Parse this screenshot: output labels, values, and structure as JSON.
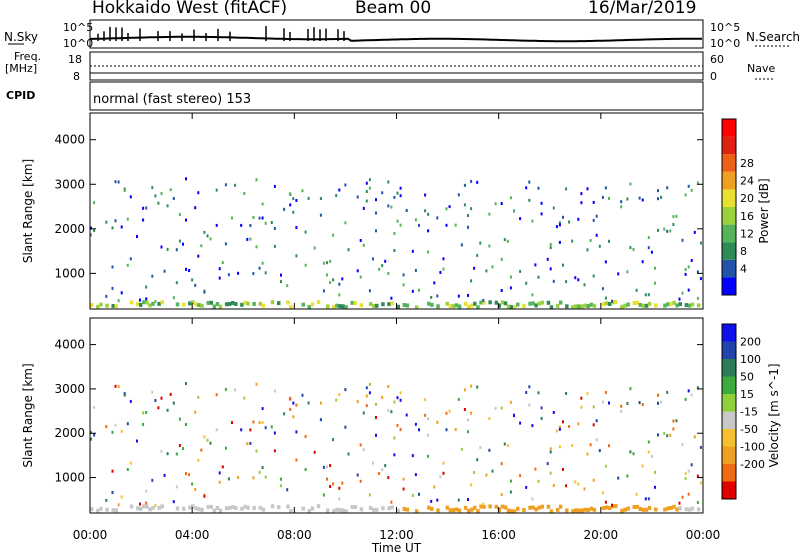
{
  "header": {
    "title": "Hokkaido West (fitACF)",
    "beam": "Beam 00",
    "date": "16/Mar/2019"
  },
  "side_labels": {
    "nsky": "N.Sky",
    "nsearch": "N.Search",
    "freq_line1": "Freq.",
    "freq_line2": "[MHz]",
    "nave": "Nave",
    "cpid": "CPID"
  },
  "noise_panel": {
    "left_ticks": [
      "10^5",
      "10^0"
    ],
    "right_ticks": [
      "10^5",
      "10^0"
    ]
  },
  "freq_panel": {
    "left_ticks": [
      "18",
      "8"
    ],
    "right_ticks": [
      "60",
      "0"
    ]
  },
  "cpid_panel": {
    "text": "normal (fast stereo) 153"
  },
  "colors": {
    "power_scale": [
      "#0000ff",
      "#2255aa",
      "#2e8b57",
      "#55b45a",
      "#9bd23c",
      "#e8e030",
      "#f0a020",
      "#ec6018",
      "#e02010",
      "#ff0000"
    ],
    "velocity_scale": [
      "#e00000",
      "#f06a10",
      "#f0a020",
      "#f5c030",
      "#c8c8c8",
      "#8fd13a",
      "#3caa3c",
      "#2e7d5a",
      "#2244aa",
      "#1010ee"
    ]
  },
  "chart_data": [
    {
      "type": "heatmap",
      "name": "power",
      "ylabel": "Slant Range [km]",
      "yticks": [
        1000,
        2000,
        3000,
        4000
      ],
      "ylim": [
        200,
        4600
      ],
      "xlim": [
        0,
        24
      ],
      "colorbar": {
        "label": "Power [dB]",
        "ticks": [
          "4",
          "8",
          "12",
          "16",
          "20",
          "24",
          "28"
        ],
        "range": [
          0,
          32
        ]
      },
      "echo_band_center_km": [
        [
          0,
          1450
        ],
        [
          2,
          1380
        ],
        [
          4,
          1370
        ],
        [
          6,
          1450
        ],
        [
          8,
          1560
        ],
        [
          10,
          1850
        ],
        [
          11,
          2250
        ],
        [
          12,
          2100
        ],
        [
          13,
          2650
        ],
        [
          14,
          2550
        ],
        [
          15,
          2300
        ],
        [
          16,
          2500
        ],
        [
          17,
          2350
        ],
        [
          18,
          2550
        ],
        [
          19,
          2650
        ],
        [
          20,
          2750
        ],
        [
          21,
          2200
        ],
        [
          22,
          1950
        ],
        [
          23,
          1700
        ],
        [
          24,
          1600
        ]
      ]
    },
    {
      "type": "heatmap",
      "name": "velocity",
      "ylabel": "Slant Range [km]",
      "yticks": [
        1000,
        2000,
        3000,
        4000
      ],
      "ylim": [
        200,
        4600
      ],
      "xlim": [
        0,
        24
      ],
      "xticks": [
        "00:00",
        "04:00",
        "08:00",
        "12:00",
        "16:00",
        "20:00",
        "00:00"
      ],
      "xlabel": "Time UT",
      "colorbar": {
        "label": "Velocity [m s^-1]",
        "ticks": [
          "200",
          "100",
          "50",
          "15",
          "-15",
          "-50",
          "-100",
          "-200"
        ]
      }
    }
  ]
}
